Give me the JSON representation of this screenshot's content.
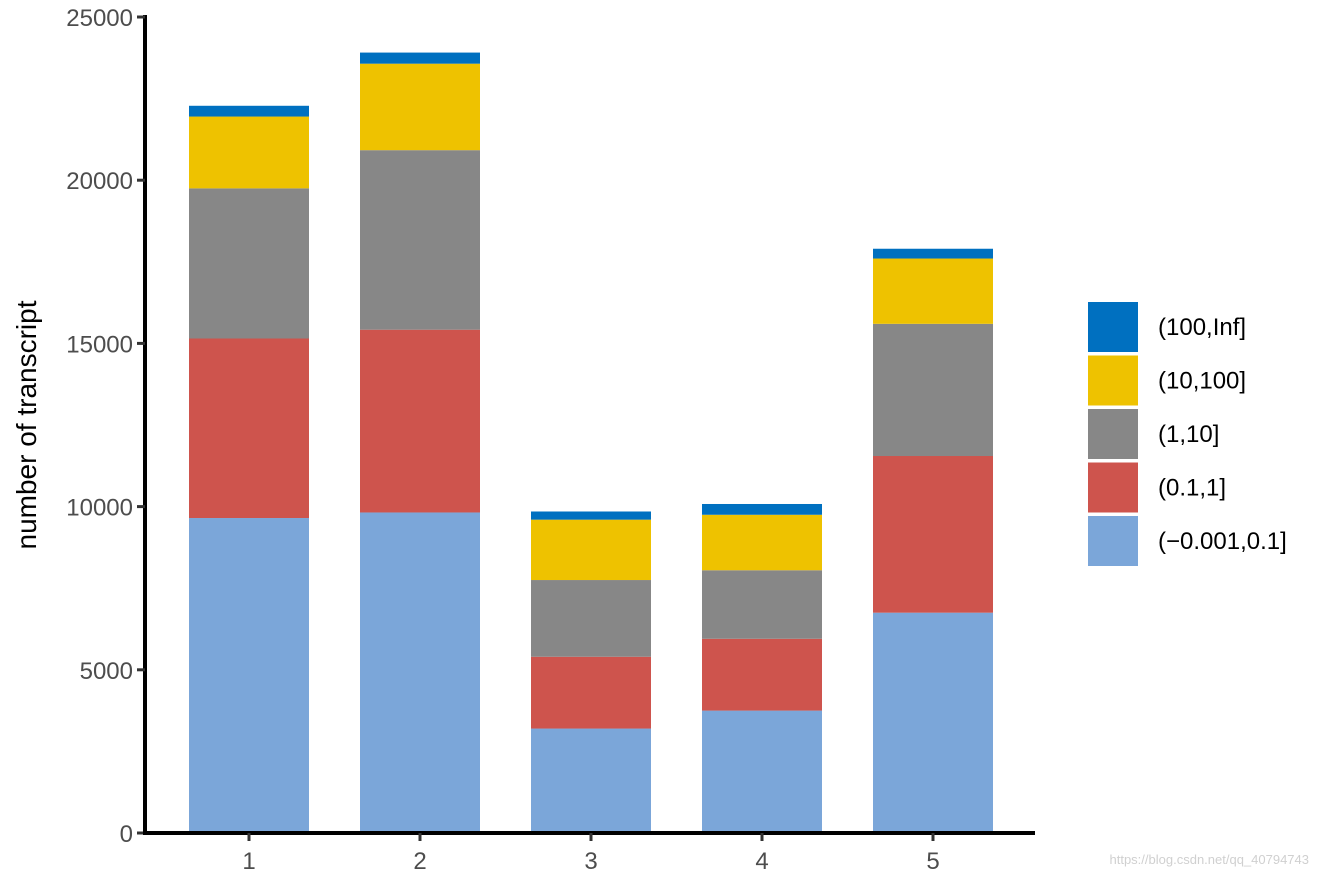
{
  "chart_data": {
    "type": "bar",
    "stacked": true,
    "categories": [
      "1",
      "2",
      "3",
      "4",
      "5"
    ],
    "series": [
      {
        "name": "(−0.001,0.1]",
        "color": "#7ba6d9",
        "values": [
          9650,
          9820,
          3200,
          3750,
          6750
        ]
      },
      {
        "name": "(0.1,1]",
        "color": "#ce544d",
        "values": [
          5500,
          5600,
          2200,
          2200,
          4800
        ]
      },
      {
        "name": "(1,10]",
        "color": "#878787",
        "values": [
          4600,
          5500,
          2350,
          2100,
          4050
        ]
      },
      {
        "name": "(10,100]",
        "color": "#eec200",
        "values": [
          2200,
          2650,
          1850,
          1700,
          2000
        ]
      },
      {
        "name": "(100,Inf]",
        "color": "#0070c0",
        "values": [
          330,
          340,
          250,
          330,
          300
        ]
      }
    ],
    "ylabel": "number of transcript",
    "xlabel": "",
    "ylim": [
      0,
      25000
    ],
    "yticks": [
      "0",
      "5000",
      "10000",
      "15000",
      "20000",
      "25000"
    ],
    "grid": false,
    "legend_position": "right"
  },
  "watermark": "https://blog.csdn.net/qq_40794743"
}
